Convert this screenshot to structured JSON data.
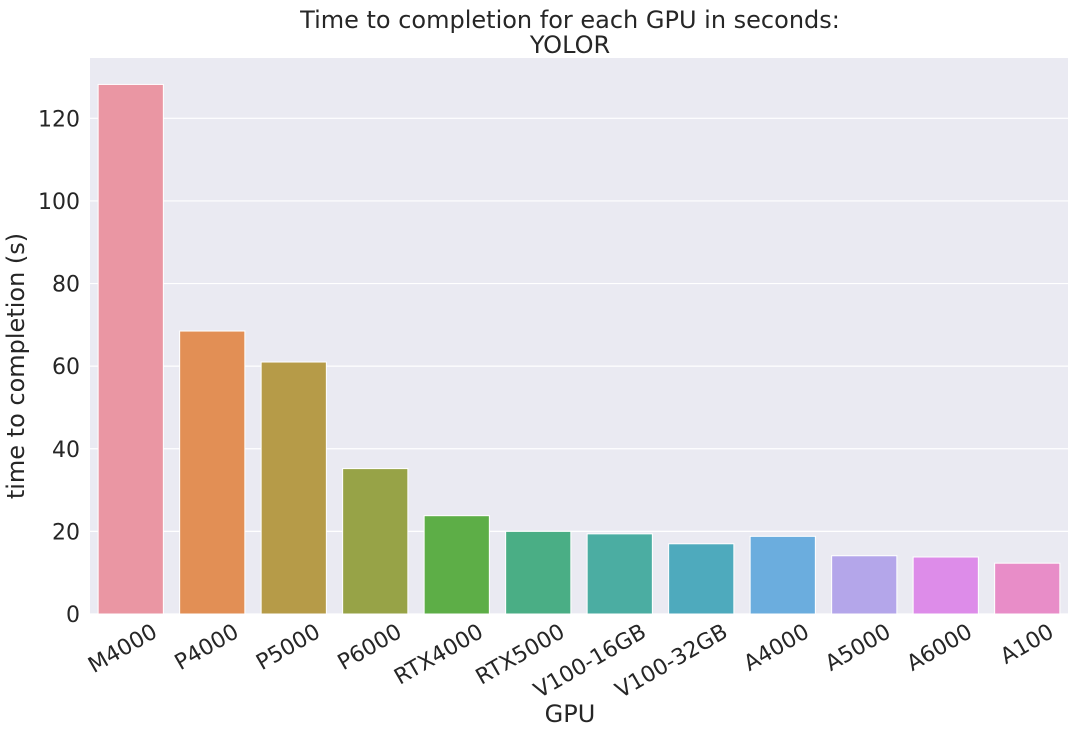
{
  "chart_data": {
    "type": "bar",
    "title_lines": [
      "Time to completion for each GPU in seconds:",
      "YOLOR"
    ],
    "xlabel": "GPU",
    "ylabel": "time to completion (s)",
    "categories": [
      "M4000",
      "P4000",
      "P5000",
      "P6000",
      "RTX4000",
      "RTX5000",
      "V100-16GB",
      "V100-32GB",
      "A4000",
      "A5000",
      "A6000",
      "A100"
    ],
    "values": [
      128.2,
      68.5,
      61.0,
      35.2,
      23.8,
      20.0,
      19.4,
      17.0,
      18.8,
      14.1,
      13.8,
      12.3
    ],
    "colors": [
      "#ea96a3",
      "#e28f55",
      "#b69b48",
      "#97a347",
      "#5dae47",
      "#4aae85",
      "#4bada2",
      "#4eaabd",
      "#6badde",
      "#b4a6ea",
      "#dd8ce9",
      "#e88dc8"
    ],
    "yticks": [
      0,
      20,
      40,
      60,
      80,
      100,
      120
    ],
    "ylim": [
      0,
      134.6
    ],
    "grid": true,
    "legend": "none",
    "background": "#eaeaf2"
  }
}
